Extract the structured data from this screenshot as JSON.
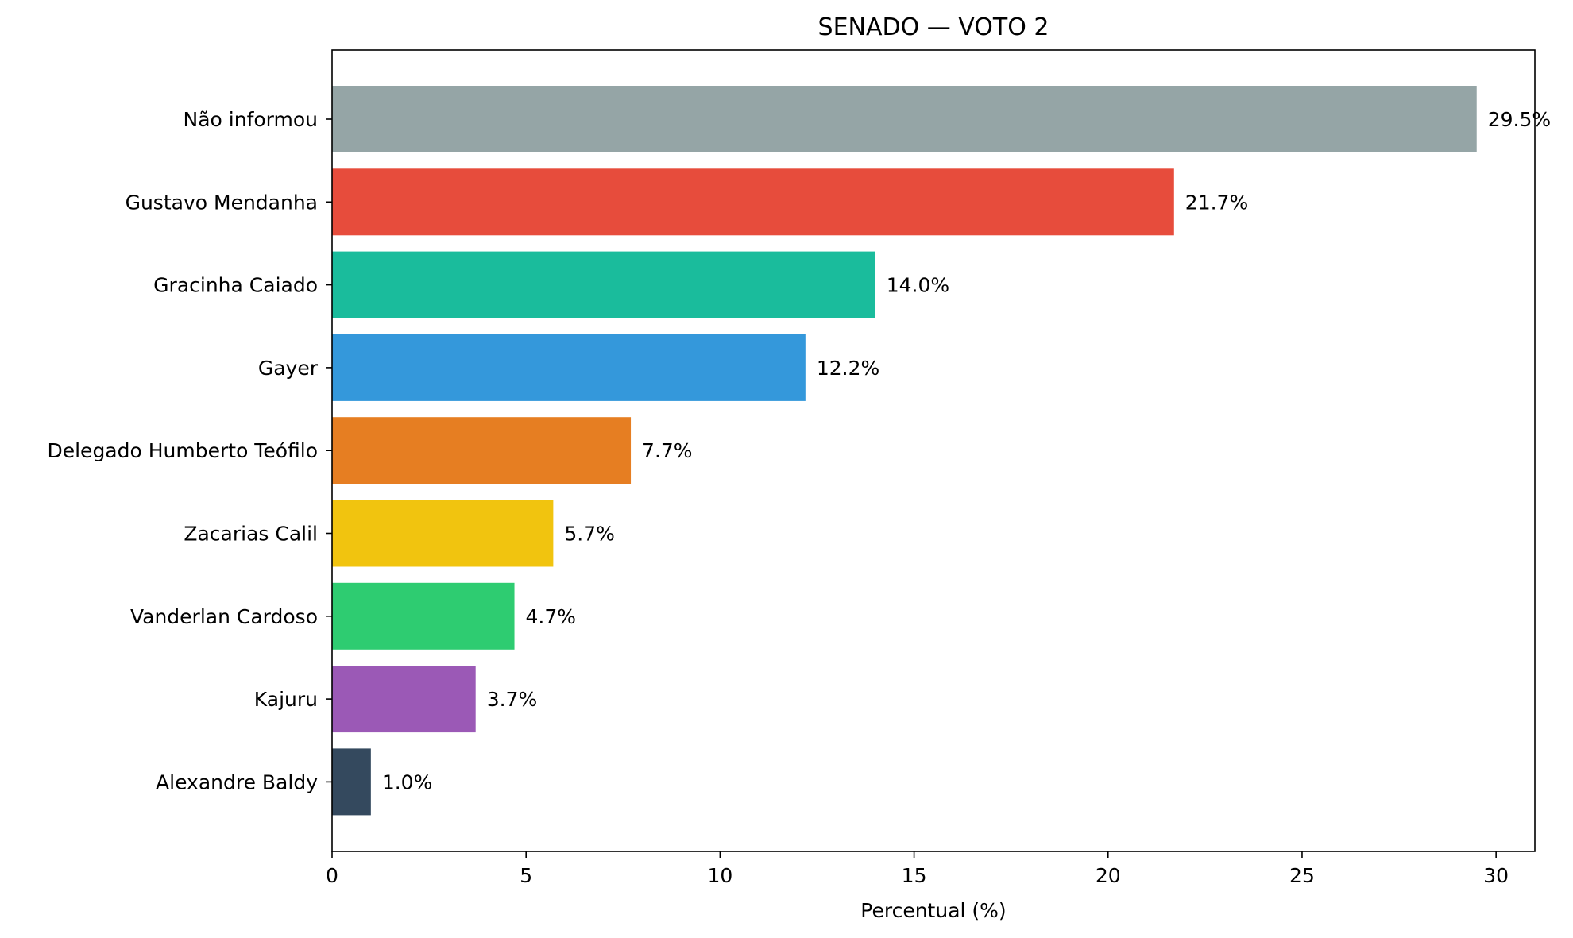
{
  "chart_data": {
    "type": "bar",
    "orientation": "horizontal",
    "title": "SENADO — VOTO 2",
    "xlabel": "Percentual (%)",
    "ylabel": "",
    "xlim": [
      0,
      31
    ],
    "xticks": [
      0,
      5,
      10,
      15,
      20,
      25,
      30
    ],
    "grid": false,
    "legend": "none",
    "value_suffix": "%",
    "categories": [
      "Não informou",
      "Gustavo Mendanha",
      "Gracinha Caiado",
      "Gayer",
      "Delegado Humberto Teófilo",
      "Zacarias Calil",
      "Vanderlan Cardoso",
      "Kajuru",
      "Alexandre Baldy"
    ],
    "values": [
      29.5,
      21.7,
      14.0,
      12.2,
      7.7,
      5.7,
      4.7,
      3.7,
      1.0
    ],
    "value_labels": [
      "29.5%",
      "21.7%",
      "14.0%",
      "12.2%",
      "7.7%",
      "5.7%",
      "4.7%",
      "3.7%",
      "1.0%"
    ],
    "colors": [
      "#95a5a6",
      "#e74c3c",
      "#1abc9c",
      "#3498db",
      "#e67e22",
      "#f1c40f",
      "#2ecc71",
      "#9b59b6",
      "#34495e"
    ]
  }
}
